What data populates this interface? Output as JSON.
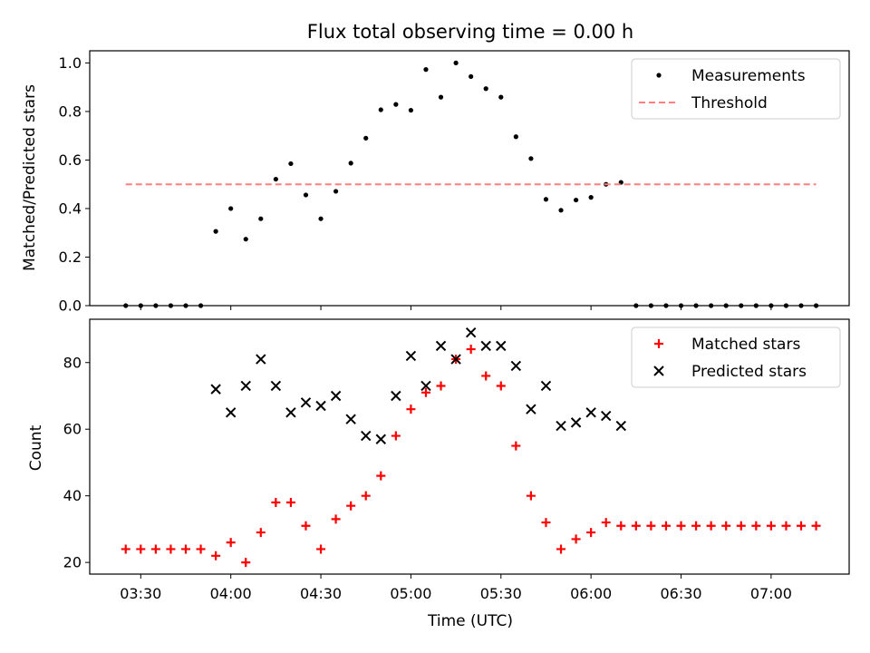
{
  "chart_data": [
    {
      "type": "scatter",
      "title": "Flux total observing time = 0.00 h",
      "xlabel": "",
      "ylabel": "Matched/Predicted stars",
      "ylim": [
        0,
        1.05
      ],
      "yticks": [
        "0.0",
        "0.2",
        "0.4",
        "0.6",
        "0.8",
        "1.0"
      ],
      "ytick_values": [
        0,
        0.2,
        0.4,
        0.6,
        0.8,
        1.0
      ],
      "grid": false,
      "legend_position": "top-right",
      "series": [
        {
          "name": "Measurements",
          "marker": "dot",
          "color": "#000000",
          "points": [
            [
              "03:25",
              0
            ],
            [
              "03:30",
              0
            ],
            [
              "03:35",
              0
            ],
            [
              "03:40",
              0
            ],
            [
              "03:45",
              0
            ],
            [
              "03:50",
              0
            ],
            [
              "03:55",
              0.306
            ],
            [
              "04:00",
              0.4
            ],
            [
              "04:05",
              0.274
            ],
            [
              "04:10",
              0.358
            ],
            [
              "04:15",
              0.521
            ],
            [
              "04:20",
              0.585
            ],
            [
              "04:25",
              0.456
            ],
            [
              "04:30",
              0.358
            ],
            [
              "04:35",
              0.471
            ],
            [
              "04:40",
              0.587
            ],
            [
              "04:45",
              0.69
            ],
            [
              "04:50",
              0.807
            ],
            [
              "04:55",
              0.829
            ],
            [
              "05:00",
              0.805
            ],
            [
              "05:05",
              0.973
            ],
            [
              "05:10",
              0.859
            ],
            [
              "05:15",
              1.0
            ],
            [
              "05:20",
              0.944
            ],
            [
              "05:25",
              0.894
            ],
            [
              "05:30",
              0.859
            ],
            [
              "05:35",
              0.696
            ],
            [
              "05:40",
              0.606
            ],
            [
              "05:45",
              0.438
            ],
            [
              "05:50",
              0.393
            ],
            [
              "05:55",
              0.435
            ],
            [
              "06:00",
              0.446
            ],
            [
              "06:05",
              0.5
            ],
            [
              "06:10",
              0.508
            ],
            [
              "06:15",
              0
            ],
            [
              "06:20",
              0
            ],
            [
              "06:25",
              0
            ],
            [
              "06:30",
              0
            ],
            [
              "06:35",
              0
            ],
            [
              "06:40",
              0
            ],
            [
              "06:45",
              0
            ],
            [
              "06:50",
              0
            ],
            [
              "06:55",
              0
            ],
            [
              "07:00",
              0
            ],
            [
              "07:05",
              0
            ],
            [
              "07:10",
              0
            ],
            [
              "07:15",
              0
            ]
          ]
        },
        {
          "name": "Threshold",
          "marker": "dashed-line",
          "color": "#ff7f7f",
          "points": [
            [
              "03:25",
              0.5
            ],
            [
              "07:15",
              0.5
            ]
          ]
        }
      ]
    },
    {
      "type": "scatter",
      "title": "",
      "xlabel": "Time (UTC)",
      "ylabel": "Count",
      "ylim": [
        16.5,
        93
      ],
      "yticks": [
        "20",
        "40",
        "60",
        "80"
      ],
      "ytick_values": [
        20,
        40,
        60,
        80
      ],
      "xticks": [
        "03:30",
        "04:00",
        "04:30",
        "05:00",
        "05:30",
        "06:00",
        "06:30",
        "07:00"
      ],
      "grid": false,
      "legend_position": "top-right",
      "series": [
        {
          "name": "Matched stars",
          "marker": "plus",
          "color": "#ff0000",
          "points": [
            [
              "03:25",
              24
            ],
            [
              "03:30",
              24
            ],
            [
              "03:35",
              24
            ],
            [
              "03:40",
              24
            ],
            [
              "03:45",
              24
            ],
            [
              "03:50",
              24
            ],
            [
              "03:55",
              22
            ],
            [
              "04:00",
              26
            ],
            [
              "04:05",
              20
            ],
            [
              "04:10",
              29
            ],
            [
              "04:15",
              38
            ],
            [
              "04:20",
              38
            ],
            [
              "04:25",
              31
            ],
            [
              "04:30",
              24
            ],
            [
              "04:35",
              33
            ],
            [
              "04:40",
              37
            ],
            [
              "04:45",
              40
            ],
            [
              "04:50",
              46
            ],
            [
              "04:55",
              58
            ],
            [
              "05:00",
              66
            ],
            [
              "05:05",
              71
            ],
            [
              "05:10",
              73
            ],
            [
              "05:15",
              81
            ],
            [
              "05:20",
              84
            ],
            [
              "05:25",
              76
            ],
            [
              "05:30",
              73
            ],
            [
              "05:35",
              55
            ],
            [
              "05:40",
              40
            ],
            [
              "05:45",
              32
            ],
            [
              "05:50",
              24
            ],
            [
              "05:55",
              27
            ],
            [
              "06:00",
              29
            ],
            [
              "06:05",
              32
            ],
            [
              "06:10",
              31
            ],
            [
              "06:15",
              31
            ],
            [
              "06:20",
              31
            ],
            [
              "06:25",
              31
            ],
            [
              "06:30",
              31
            ],
            [
              "06:35",
              31
            ],
            [
              "06:40",
              31
            ],
            [
              "06:45",
              31
            ],
            [
              "06:50",
              31
            ],
            [
              "06:55",
              31
            ],
            [
              "07:00",
              31
            ],
            [
              "07:05",
              31
            ],
            [
              "07:10",
              31
            ],
            [
              "07:15",
              31
            ]
          ]
        },
        {
          "name": "Predicted stars",
          "marker": "x",
          "color": "#000000",
          "points": [
            [
              "03:55",
              72
            ],
            [
              "04:00",
              65
            ],
            [
              "04:05",
              73
            ],
            [
              "04:10",
              81
            ],
            [
              "04:15",
              73
            ],
            [
              "04:20",
              65
            ],
            [
              "04:25",
              68
            ],
            [
              "04:30",
              67
            ],
            [
              "04:35",
              70
            ],
            [
              "04:40",
              63
            ],
            [
              "04:45",
              58
            ],
            [
              "04:50",
              57
            ],
            [
              "04:55",
              70
            ],
            [
              "05:00",
              82
            ],
            [
              "05:05",
              73
            ],
            [
              "05:10",
              85
            ],
            [
              "05:15",
              81
            ],
            [
              "05:20",
              89
            ],
            [
              "05:25",
              85
            ],
            [
              "05:30",
              85
            ],
            [
              "05:35",
              79
            ],
            [
              "05:40",
              66
            ],
            [
              "05:45",
              73
            ],
            [
              "05:50",
              61
            ],
            [
              "05:55",
              62
            ],
            [
              "06:00",
              65
            ],
            [
              "06:05",
              64
            ],
            [
              "06:10",
              61
            ]
          ]
        }
      ]
    }
  ]
}
